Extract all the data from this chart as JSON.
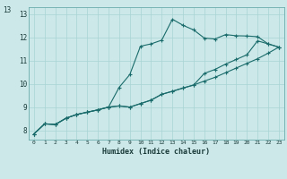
{
  "title": "",
  "xlabel": "Humidex (Indice chaleur)",
  "bg_color": "#cce8e8",
  "line_color": "#1a6b6b",
  "grid_color": "#a8d4d4",
  "xlim": [
    -0.5,
    23.5
  ],
  "ylim": [
    7.6,
    13.3
  ],
  "xticks": [
    0,
    1,
    2,
    3,
    4,
    5,
    6,
    7,
    8,
    9,
    10,
    11,
    12,
    13,
    14,
    15,
    16,
    17,
    18,
    19,
    20,
    21,
    22,
    23
  ],
  "yticks": [
    8,
    9,
    10,
    11,
    12,
    13
  ],
  "curve1_x": [
    0,
    1,
    2,
    3,
    4,
    5,
    6,
    7,
    8,
    9,
    10,
    11,
    12,
    13,
    14,
    15,
    16,
    17,
    18,
    19,
    20,
    21,
    22,
    23
  ],
  "curve1_y": [
    7.85,
    8.28,
    8.25,
    8.52,
    8.68,
    8.78,
    8.88,
    9.0,
    9.05,
    9.0,
    9.15,
    9.3,
    9.55,
    9.68,
    9.82,
    9.95,
    10.12,
    10.28,
    10.48,
    10.68,
    10.88,
    11.08,
    11.32,
    11.58
  ],
  "curve2_x": [
    0,
    1,
    2,
    3,
    4,
    5,
    6,
    7,
    8,
    9,
    10,
    11,
    12,
    13,
    14,
    15,
    16,
    17,
    18,
    19,
    20,
    21,
    22,
    23
  ],
  "curve2_y": [
    7.85,
    8.28,
    8.25,
    8.52,
    8.68,
    8.78,
    8.88,
    9.0,
    9.85,
    10.4,
    11.62,
    11.72,
    11.88,
    12.78,
    12.52,
    12.32,
    11.97,
    11.93,
    12.12,
    12.07,
    12.06,
    12.03,
    11.72,
    11.58
  ],
  "curve3_x": [
    0,
    1,
    2,
    3,
    4,
    5,
    6,
    7,
    8,
    9,
    10,
    11,
    12,
    13,
    14,
    15,
    16,
    17,
    18,
    19,
    20,
    21,
    22,
    23
  ],
  "curve3_y": [
    7.85,
    8.28,
    8.25,
    8.52,
    8.68,
    8.78,
    8.88,
    9.0,
    9.05,
    9.0,
    9.15,
    9.3,
    9.55,
    9.68,
    9.82,
    9.95,
    10.45,
    10.62,
    10.85,
    11.05,
    11.25,
    11.85,
    11.72,
    11.58
  ],
  "ylabel_13_x": 0.01,
  "ylabel_13_y": 0.93
}
